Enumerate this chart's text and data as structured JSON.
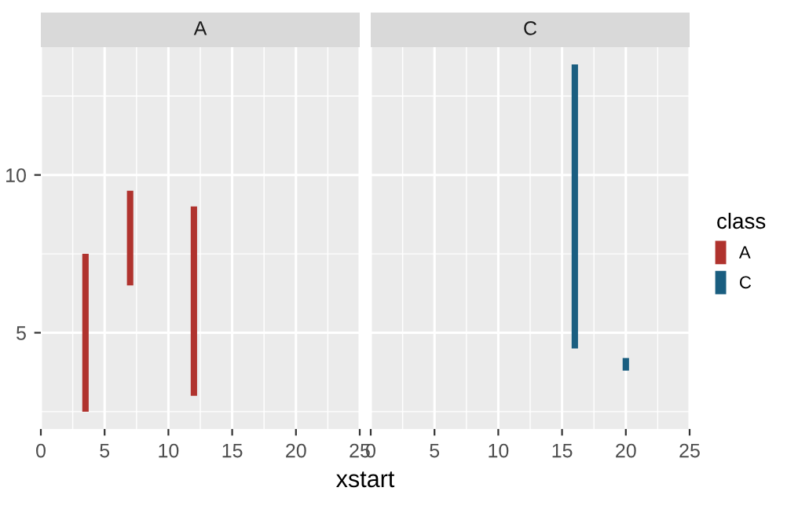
{
  "chart_data": [
    {
      "type": "bar",
      "title": "A",
      "xlabel": "xstart",
      "x": [
        3.5,
        7,
        12
      ],
      "series": [
        {
          "name": "A",
          "color": "#b0332e",
          "base": [
            2.5,
            6.5,
            3
          ],
          "values": [
            5,
            3,
            6
          ]
        }
      ],
      "xlim": [
        0,
        25
      ],
      "xticks": [
        0,
        5,
        10,
        15,
        20,
        25
      ],
      "ylim": [
        1.95,
        14.05
      ],
      "yticks": [
        5,
        10
      ],
      "grid": true,
      "legend": "right"
    },
    {
      "type": "bar",
      "title": "C",
      "x": [
        16,
        20
      ],
      "series": [
        {
          "name": "C",
          "color": "#1a5e80",
          "base": [
            4.5,
            3.8
          ],
          "values": [
            9,
            0.4
          ]
        }
      ],
      "xlim": [
        0,
        25
      ],
      "xticks": [
        0,
        5,
        10,
        15,
        20,
        25
      ],
      "ylim": [
        1.95,
        14.05
      ],
      "yticks": [
        5,
        10
      ],
      "grid": true,
      "tick_labels": "x",
      "legend": "right",
      "legend_title": "class"
    }
  ]
}
